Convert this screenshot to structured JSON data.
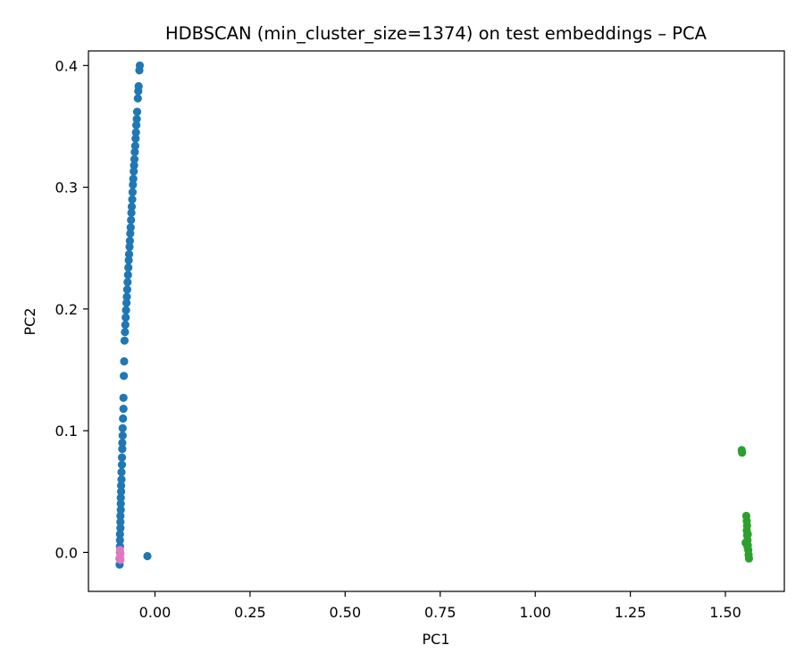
{
  "chart_data": {
    "type": "scatter",
    "title": "HDBSCAN (min_cluster_size=1374) on test embeddings – PCA",
    "xlabel": "PC1",
    "ylabel": "PC2",
    "xlim": [
      -0.175,
      1.655
    ],
    "ylim": [
      -0.032,
      0.412
    ],
    "xticks": [
      0.0,
      0.25,
      0.5,
      0.75,
      1.0,
      1.25,
      1.5
    ],
    "xtick_labels": [
      "0.00",
      "0.25",
      "0.50",
      "0.75",
      "1.00",
      "1.25",
      "1.50"
    ],
    "yticks": [
      0.0,
      0.1,
      0.2,
      0.3,
      0.4
    ],
    "ytick_labels": [
      "0.0",
      "0.1",
      "0.2",
      "0.3",
      "0.4"
    ],
    "grid": false,
    "series": [
      {
        "color": "#1f77b4",
        "points": [
          [
            -0.04,
            0.4
          ],
          [
            -0.041,
            0.396
          ],
          [
            -0.043,
            0.383
          ],
          [
            -0.044,
            0.379
          ],
          [
            -0.045,
            0.373
          ],
          [
            -0.047,
            0.362
          ],
          [
            -0.048,
            0.356
          ],
          [
            -0.049,
            0.351
          ],
          [
            -0.05,
            0.345
          ],
          [
            -0.051,
            0.34
          ],
          [
            -0.052,
            0.334
          ],
          [
            -0.053,
            0.329
          ],
          [
            -0.054,
            0.323
          ],
          [
            -0.055,
            0.318
          ],
          [
            -0.056,
            0.313
          ],
          [
            -0.057,
            0.307
          ],
          [
            -0.058,
            0.302
          ],
          [
            -0.059,
            0.296
          ],
          [
            -0.06,
            0.29
          ],
          [
            -0.061,
            0.284
          ],
          [
            -0.062,
            0.279
          ],
          [
            -0.063,
            0.273
          ],
          [
            -0.064,
            0.267
          ],
          [
            -0.065,
            0.262
          ],
          [
            -0.066,
            0.256
          ],
          [
            -0.067,
            0.251
          ],
          [
            -0.068,
            0.245
          ],
          [
            -0.069,
            0.24
          ],
          [
            -0.07,
            0.234
          ],
          [
            -0.071,
            0.228
          ],
          [
            -0.072,
            0.222
          ],
          [
            -0.073,
            0.216
          ],
          [
            -0.074,
            0.21
          ],
          [
            -0.075,
            0.205
          ],
          [
            -0.076,
            0.199
          ],
          [
            -0.077,
            0.193
          ],
          [
            -0.078,
            0.187
          ],
          [
            -0.079,
            0.181
          ],
          [
            -0.08,
            0.174
          ],
          [
            -0.081,
            0.157
          ],
          [
            -0.082,
            0.145
          ],
          [
            -0.083,
            0.127
          ],
          [
            -0.083,
            0.118
          ],
          [
            -0.084,
            0.11
          ],
          [
            -0.085,
            0.102
          ],
          [
            -0.085,
            0.096
          ],
          [
            -0.086,
            0.09
          ],
          [
            -0.086,
            0.085
          ],
          [
            -0.087,
            0.078
          ],
          [
            -0.087,
            0.072
          ],
          [
            -0.088,
            0.066
          ],
          [
            -0.088,
            0.06
          ],
          [
            -0.089,
            0.055
          ],
          [
            -0.089,
            0.05
          ],
          [
            -0.09,
            0.045
          ],
          [
            -0.09,
            0.04
          ],
          [
            -0.09,
            0.035
          ],
          [
            -0.091,
            0.03
          ],
          [
            -0.091,
            0.025
          ],
          [
            -0.091,
            0.02
          ],
          [
            -0.092,
            0.015
          ],
          [
            -0.092,
            0.01
          ],
          [
            -0.092,
            0.005
          ],
          [
            -0.092,
            0.0
          ],
          [
            -0.093,
            -0.005
          ],
          [
            -0.093,
            -0.01
          ],
          [
            -0.02,
            -0.003
          ]
        ]
      },
      {
        "color": "#e377c2",
        "points": [
          [
            -0.092,
            0.002
          ],
          [
            -0.091,
            -0.001
          ],
          [
            -0.092,
            -0.004
          ],
          [
            -0.091,
            -0.006
          ]
        ]
      },
      {
        "color": "#2ca02c",
        "points": [
          [
            1.543,
            0.084
          ],
          [
            1.544,
            0.082
          ],
          [
            1.555,
            0.03
          ],
          [
            1.556,
            0.026
          ],
          [
            1.557,
            0.022
          ],
          [
            1.556,
            0.018
          ],
          [
            1.557,
            0.014
          ],
          [
            1.558,
            0.01
          ],
          [
            1.559,
            0.006
          ],
          [
            1.56,
            0.002
          ],
          [
            1.561,
            -0.002
          ],
          [
            1.562,
            -0.005
          ],
          [
            1.553,
            0.008
          ],
          [
            1.559,
            0.015
          ],
          [
            1.558,
            0.005
          ]
        ]
      }
    ]
  }
}
